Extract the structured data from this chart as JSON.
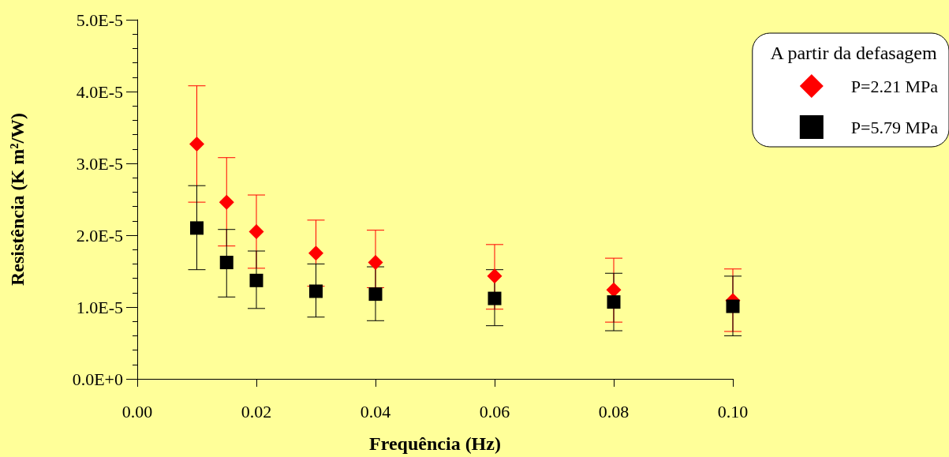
{
  "chart_data": {
    "type": "scatter",
    "xlabel": "Frequência (Hz)",
    "ylabel": "Resistência (K m²/W)",
    "legend_title": "A partir da defasagem",
    "legend": "top right",
    "grid": false,
    "xlim": [
      0,
      0.1
    ],
    "xticks": [
      {
        "value": 0,
        "label": "0.00"
      },
      {
        "value": 0.02,
        "label": "0.02"
      },
      {
        "value": 0.04,
        "label": "0.04"
      },
      {
        "value": 0.06,
        "label": "0.06"
      },
      {
        "value": 0.08,
        "label": "0.08"
      },
      {
        "value": 0.1,
        "label": "0.10"
      }
    ],
    "ylim": [
      0,
      5e-05
    ],
    "yticks": [
      {
        "value": 0,
        "label": "0.0E+0"
      },
      {
        "value": 1e-05,
        "label": "1.0E-5"
      },
      {
        "value": 2e-05,
        "label": "2.0E-5"
      },
      {
        "value": 3e-05,
        "label": "3.0E-5"
      },
      {
        "value": 4e-05,
        "label": "4.0E-5"
      },
      {
        "value": 5e-05,
        "label": "5.0E-5"
      }
    ],
    "x": [
      0.01,
      0.015,
      0.02,
      0.03,
      0.04,
      0.06,
      0.08,
      0.1
    ],
    "series": [
      {
        "name": "P=2.21 MPa",
        "color": "#ff0000",
        "marker": "diamond",
        "values": [
          3.27e-05,
          2.46e-05,
          2.05e-05,
          1.75e-05,
          1.62e-05,
          1.43e-05,
          1.24e-05,
          1.09e-05
        ],
        "errors": [
          [
            2.46e-05,
            4.08e-05
          ],
          [
            1.85e-05,
            3.08e-05
          ],
          [
            1.54e-05,
            2.56e-05
          ],
          [
            1.29e-05,
            2.21e-05
          ],
          [
            1.27e-05,
            2.07e-05
          ],
          [
            9.7e-06,
            1.87e-05
          ],
          [
            7.9e-06,
            1.68e-05
          ],
          [
            6.6e-06,
            1.53e-05
          ]
        ]
      },
      {
        "name": "P=5.79 MPa",
        "color": "#000000",
        "marker": "square",
        "values": [
          2.1e-05,
          1.62e-05,
          1.37e-05,
          1.22e-05,
          1.18e-05,
          1.12e-05,
          1.07e-05,
          1.01e-05
        ],
        "errors": [
          [
            1.52e-05,
            2.69e-05
          ],
          [
            1.14e-05,
            2.08e-05
          ],
          [
            9.8e-06,
            1.78e-05
          ],
          [
            8.6e-06,
            1.6e-05
          ],
          [
            8.1e-06,
            1.56e-05
          ],
          [
            7.4e-06,
            1.52e-05
          ],
          [
            6.7e-06,
            1.47e-05
          ],
          [
            6e-06,
            1.43e-05
          ]
        ]
      }
    ]
  }
}
